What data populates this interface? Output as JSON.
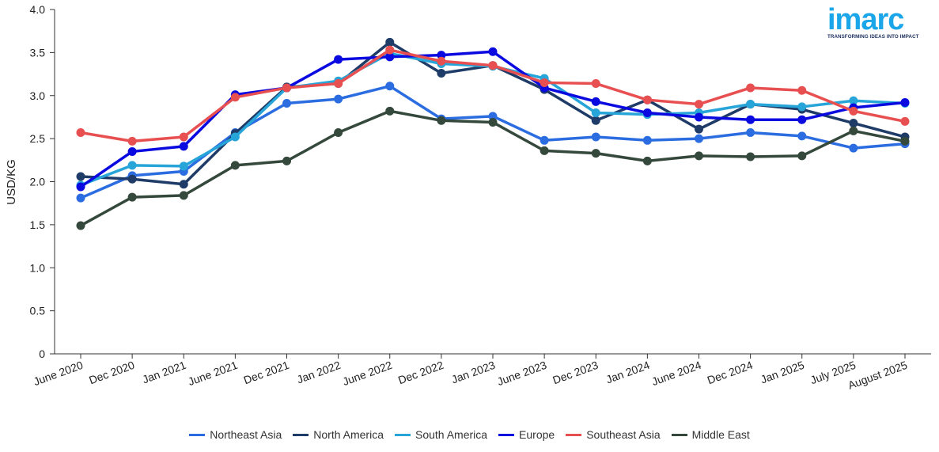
{
  "logo": {
    "text": "imarc",
    "tagline": "TRANSFORMING IDEAS INTO IMPACT"
  },
  "chart_data": {
    "type": "line",
    "title": "",
    "xlabel": "",
    "ylabel": "USD/KG",
    "ylim": [
      0,
      4.0
    ],
    "yticks": [
      "0",
      "0.5",
      "1.0",
      "1.5",
      "2.0",
      "2.5",
      "3.0",
      "3.5",
      "4.0"
    ],
    "categories": [
      "June 2020",
      "Dec 2020",
      "Jan 2021",
      "June 2021",
      "Dec 2021",
      "Jan 2022",
      "June 2022",
      "Dec 2022",
      "Jan 2023",
      "June 2023",
      "Dec 2023",
      "Jan 2024",
      "June 2024",
      "Dec 2024",
      "Jan 2025",
      "July 2025",
      "August 2025"
    ],
    "legend_position": "bottom",
    "grid": false,
    "series": [
      {
        "name": "Northeast Asia",
        "color": "#2b6de0",
        "values": [
          1.81,
          2.07,
          2.12,
          2.57,
          2.91,
          2.96,
          3.11,
          2.73,
          2.76,
          2.48,
          2.52,
          2.48,
          2.5,
          2.57,
          2.53,
          2.39,
          2.44
        ]
      },
      {
        "name": "North America",
        "color": "#1f3b67",
        "values": [
          2.06,
          2.03,
          1.97,
          2.56,
          3.1,
          3.14,
          3.62,
          3.26,
          3.35,
          3.07,
          2.71,
          2.95,
          2.61,
          2.9,
          2.84,
          2.68,
          2.52
        ]
      },
      {
        "name": "South America",
        "color": "#27a5d9",
        "values": [
          1.96,
          2.19,
          2.18,
          2.52,
          3.09,
          3.17,
          3.49,
          3.37,
          3.34,
          3.2,
          2.8,
          2.78,
          2.8,
          2.9,
          2.87,
          2.94,
          2.91
        ]
      },
      {
        "name": "Europe",
        "color": "#0a0ae0",
        "values": [
          1.94,
          2.35,
          2.41,
          3.01,
          3.09,
          3.42,
          3.45,
          3.47,
          3.51,
          3.09,
          2.93,
          2.8,
          2.75,
          2.72,
          2.72,
          2.86,
          2.92
        ]
      },
      {
        "name": "Southeast Asia",
        "color": "#e84f50",
        "values": [
          2.57,
          2.47,
          2.52,
          2.98,
          3.09,
          3.14,
          3.53,
          3.4,
          3.35,
          3.15,
          3.14,
          2.95,
          2.9,
          3.09,
          3.06,
          2.82,
          2.7
        ]
      },
      {
        "name": "Middle East",
        "color": "#34483c",
        "values": [
          1.49,
          1.82,
          1.84,
          2.19,
          2.24,
          2.57,
          2.82,
          2.71,
          2.69,
          2.36,
          2.33,
          2.24,
          2.3,
          2.29,
          2.3,
          2.59,
          2.47
        ]
      }
    ]
  }
}
